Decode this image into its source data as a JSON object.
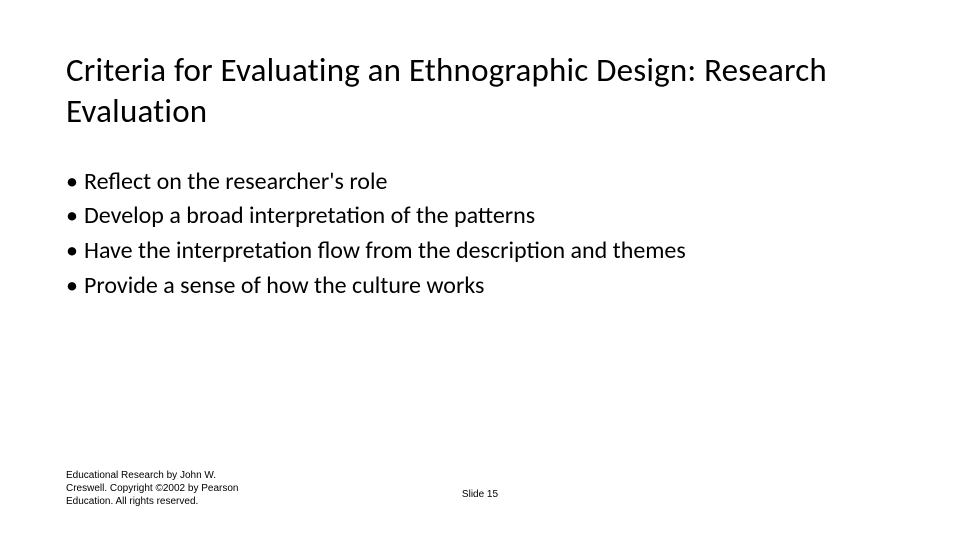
{
  "title": "Criteria for Evaluating an Ethnographic Design: Research Evaluation",
  "bullets": [
    "Reflect on the researcher's role",
    "Develop a broad interpretation of the patterns",
    "Have the interpretation flow from the description and themes",
    "Provide a sense of how the culture works"
  ],
  "footer": {
    "line1": "Educational Research by John W.",
    "line2a": "Creswell. Copyright ",
    "copyright": "©",
    "line2b": "2002 by Pearson",
    "line3": "Education. All rights reserved.",
    "slide_label": "Slide 15"
  },
  "style": {
    "background": "#ffffff",
    "text_color": "#000000",
    "title_fontsize": 33,
    "bullet_fontsize": 24,
    "footer_fontsize": 10
  }
}
